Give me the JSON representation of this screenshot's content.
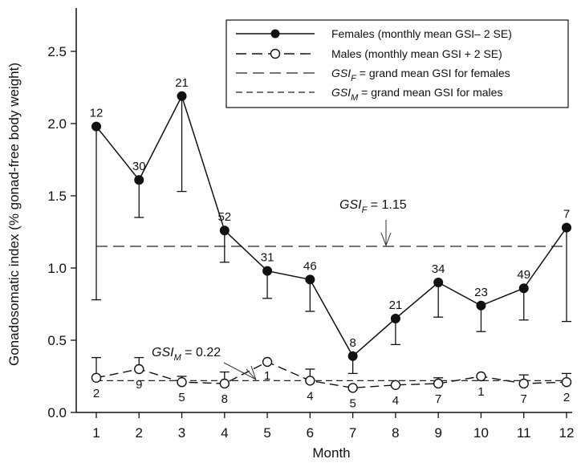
{
  "chart_data": {
    "type": "line",
    "xlabel": "Month",
    "ylabel": "Gonadosomatic index (% gonad-free body weight)",
    "ylim": [
      0.0,
      2.8
    ],
    "x_ticks": [
      "1",
      "2",
      "3",
      "4",
      "5",
      "6",
      "7",
      "8",
      "9",
      "10",
      "11",
      "12"
    ],
    "y_ticks": [
      "0.0",
      "0.5",
      "1.0",
      "1.5",
      "2.0",
      "2.5"
    ],
    "x": [
      1,
      2,
      3,
      4,
      5,
      6,
      7,
      8,
      9,
      10,
      11,
      12
    ],
    "series": [
      {
        "name": "Females (monthly mean GSI − 2 SE)",
        "marker": "filled-circle",
        "line": "solid",
        "color": "#111111",
        "values": [
          1.98,
          1.61,
          2.19,
          1.26,
          0.98,
          0.92,
          0.39,
          0.65,
          0.9,
          0.74,
          0.86,
          1.28
        ],
        "error_low": [
          0.78,
          1.35,
          1.53,
          1.04,
          0.79,
          0.7,
          0.27,
          0.47,
          0.66,
          0.56,
          0.64,
          0.63
        ],
        "n_labels": [
          "12",
          "30",
          "21",
          "52",
          "31",
          "46",
          "8",
          "21",
          "34",
          "23",
          "49",
          "7"
        ]
      },
      {
        "name": "Males (monthly mean GSI + 2 SE)",
        "marker": "open-circle",
        "line": "dashed",
        "color": "#111111",
        "values": [
          0.24,
          0.3,
          0.21,
          0.2,
          0.35,
          0.22,
          0.17,
          0.19,
          0.2,
          0.25,
          0.2,
          0.21
        ],
        "error_high": [
          0.38,
          0.38,
          0.25,
          0.28,
          0.35,
          0.3,
          0.17,
          0.19,
          0.24,
          0.25,
          0.26,
          0.27
        ],
        "n_labels": [
          "2",
          "9",
          "5",
          "8",
          "1",
          "4",
          "5",
          "4",
          "7",
          "1",
          "7",
          "2"
        ]
      }
    ],
    "reference_lines": [
      {
        "name": "GSI_F",
        "value": 1.15,
        "style": "long-dash",
        "legend_label": "= grand mean GSI for females",
        "annotation": {
          "prefix": "GSI",
          "sub": "F",
          "text": " = 1.15"
        }
      },
      {
        "name": "GSI_M",
        "value": 0.22,
        "style": "short-dash",
        "legend_label": "= grand mean GSI for males",
        "annotation": {
          "prefix": "GSI",
          "sub": "M",
          "text": " = 0.22"
        }
      }
    ],
    "legend": {
      "placement": "top-right",
      "entries": [
        {
          "kind": "female-series",
          "text": "Females (monthly mean GSI– 2 SE)"
        },
        {
          "kind": "male-series",
          "text": "Males (monthly mean GSI + 2 SE)"
        },
        {
          "kind": "ref-f",
          "prefix": "GSI",
          "sub": "F",
          "text": " = grand mean GSI for females"
        },
        {
          "kind": "ref-m",
          "prefix": "GSI",
          "sub": "M",
          "text": " = grand mean GSI for males"
        }
      ]
    },
    "grid": false
  }
}
